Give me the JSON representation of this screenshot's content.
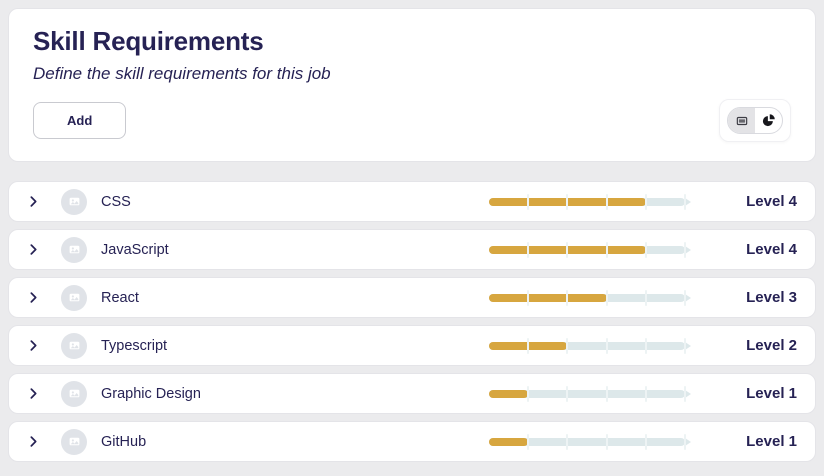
{
  "header": {
    "title": "Skill Requirements",
    "subtitle": "Define the skill requirements for this job",
    "add_button_label": "Add"
  },
  "view_toggle": {
    "options": [
      {
        "label": "list view",
        "icon": "card-list-icon",
        "selected": true
      },
      {
        "label": "chart view",
        "icon": "pie-chart-icon",
        "selected": false
      }
    ]
  },
  "skills": [
    {
      "name": "CSS",
      "level": 4,
      "max_level": 5,
      "level_label": "Level 4"
    },
    {
      "name": "JavaScript",
      "level": 4,
      "max_level": 5,
      "level_label": "Level 4"
    },
    {
      "name": "React",
      "level": 3,
      "max_level": 5,
      "level_label": "Level 3"
    },
    {
      "name": "Typescript",
      "level": 2,
      "max_level": 5,
      "level_label": "Level 2"
    },
    {
      "name": "Graphic Design",
      "level": 1,
      "max_level": 5,
      "level_label": "Level 1"
    },
    {
      "name": "GitHub",
      "level": 1,
      "max_level": 5,
      "level_label": "Level 1"
    }
  ],
  "colors": {
    "accent_gold": "#d7a63f",
    "slider_track": "#dde8ea",
    "text_navy": "#262254",
    "page_background": "#ebebed"
  }
}
